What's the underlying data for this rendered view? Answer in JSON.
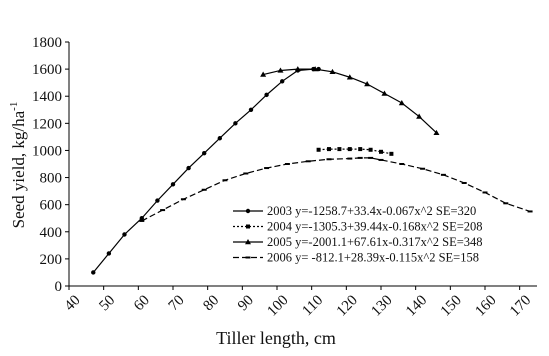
{
  "chart_data": {
    "type": "line",
    "title": "",
    "xlabel": "Tiller length, cm",
    "ylabel_text": "Seed yield, kg/ha",
    "ylabel_sup": "-1",
    "xlim": [
      40,
      175
    ],
    "ylim": [
      0,
      1800
    ],
    "x_ticks": [
      40,
      50,
      60,
      70,
      80,
      90,
      100,
      110,
      120,
      130,
      140,
      150,
      160,
      170
    ],
    "y_ticks": [
      0,
      200,
      400,
      600,
      800,
      1000,
      1200,
      1400,
      1600,
      1800
    ],
    "grid": false,
    "legend_position": "bottom-right",
    "series": [
      {
        "name": "2003 y=-1258.7+33.4x-0.067x^2 SE=320",
        "line_style": "solid",
        "marker": "circle",
        "x": [
          47,
          51.5,
          56,
          61,
          65.5,
          70,
          74.5,
          79,
          83.5,
          88,
          92.5,
          97,
          101.5,
          106,
          110.5,
          112
        ],
        "y": [
          100,
          240,
          380,
          500,
          630,
          750,
          870,
          980,
          1090,
          1200,
          1300,
          1410,
          1510,
          1590,
          1600,
          1600
        ]
      },
      {
        "name": "2004 y=-1305.3+39.44x-0.168x^2  SE=208",
        "line_style": "dotted",
        "marker": "square",
        "x": [
          112,
          115,
          118,
          121,
          124,
          127,
          130,
          133
        ],
        "y": [
          1005,
          1010,
          1010,
          1010,
          1010,
          1005,
          990,
          975
        ]
      },
      {
        "name": "2005  y=-2001.1+67.61x-0.317x^2 SE=348",
        "line_style": "solid",
        "marker": "triangle",
        "x": [
          96,
          101,
          106,
          111,
          116,
          121,
          126,
          131,
          136,
          141,
          146
        ],
        "y": [
          1560,
          1590,
          1600,
          1600,
          1580,
          1540,
          1490,
          1420,
          1350,
          1250,
          1130
        ]
      },
      {
        "name": "2006 y= -812.1+28.39x-0.115x^2 SE=158",
        "line_style": "dashed",
        "marker": "dash",
        "x": [
          61,
          67,
          73,
          79,
          85,
          91,
          97,
          103,
          109,
          115,
          121,
          124,
          127,
          130,
          136,
          142,
          148,
          154,
          160,
          166,
          173
        ],
        "y": [
          480,
          560,
          640,
          710,
          780,
          830,
          870,
          900,
          920,
          935,
          940,
          945,
          945,
          930,
          900,
          865,
          820,
          760,
          690,
          610,
          550
        ]
      }
    ]
  }
}
